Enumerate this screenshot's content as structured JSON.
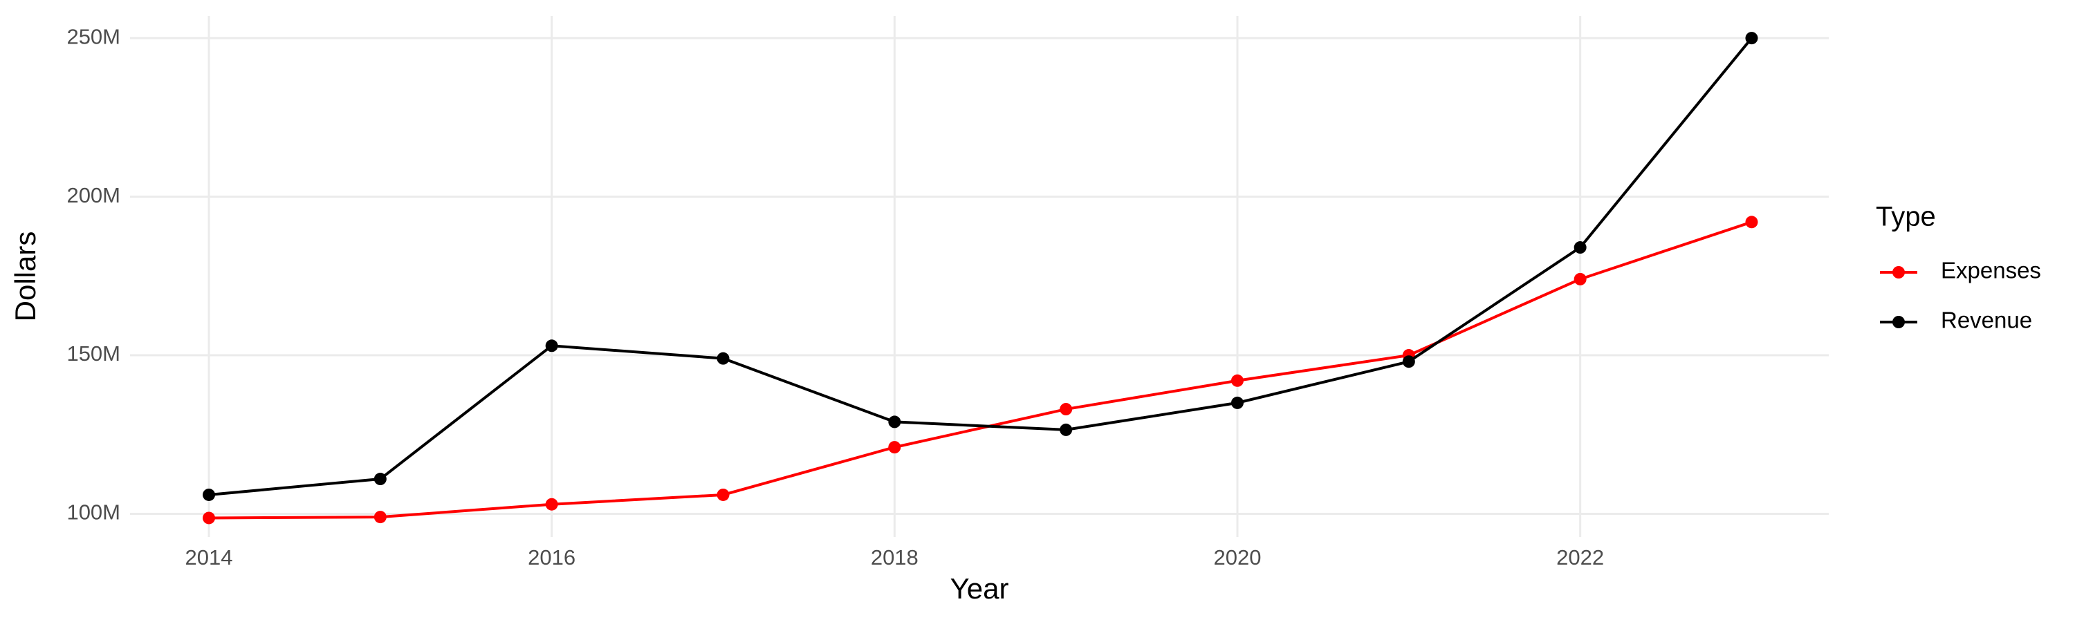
{
  "chart_data": {
    "type": "line",
    "x_label": "Year",
    "y_label": "Dollars",
    "legend_title": "Type",
    "x": [
      2014,
      2015,
      2016,
      2017,
      2018,
      2019,
      2020,
      2021,
      2022,
      2023
    ],
    "series": [
      {
        "name": "Expenses",
        "color": "#ff0000",
        "values": [
          98700000,
          99000000,
          103000000,
          106000000,
          121000000,
          133000000,
          142000000,
          150000000,
          174000000,
          192000000
        ]
      },
      {
        "name": "Revenue",
        "color": "#000000",
        "values": [
          106000000,
          111000000,
          153000000,
          149000000,
          129000000,
          126500000,
          135000000,
          148000000,
          184000000,
          250000000
        ]
      }
    ],
    "xlim": [
      2013.54,
      2023.45
    ],
    "xticks": [
      2014,
      2016,
      2018,
      2020,
      2022
    ],
    "ylim": [
      92700000,
      257000000
    ],
    "yticks": [
      {
        "value": 100000000,
        "label": "100M"
      },
      {
        "value": 150000000,
        "label": "150M"
      },
      {
        "value": 200000000,
        "label": "200M"
      },
      {
        "value": 250000000,
        "label": "250M"
      }
    ],
    "grid": true,
    "legend": "right"
  }
}
